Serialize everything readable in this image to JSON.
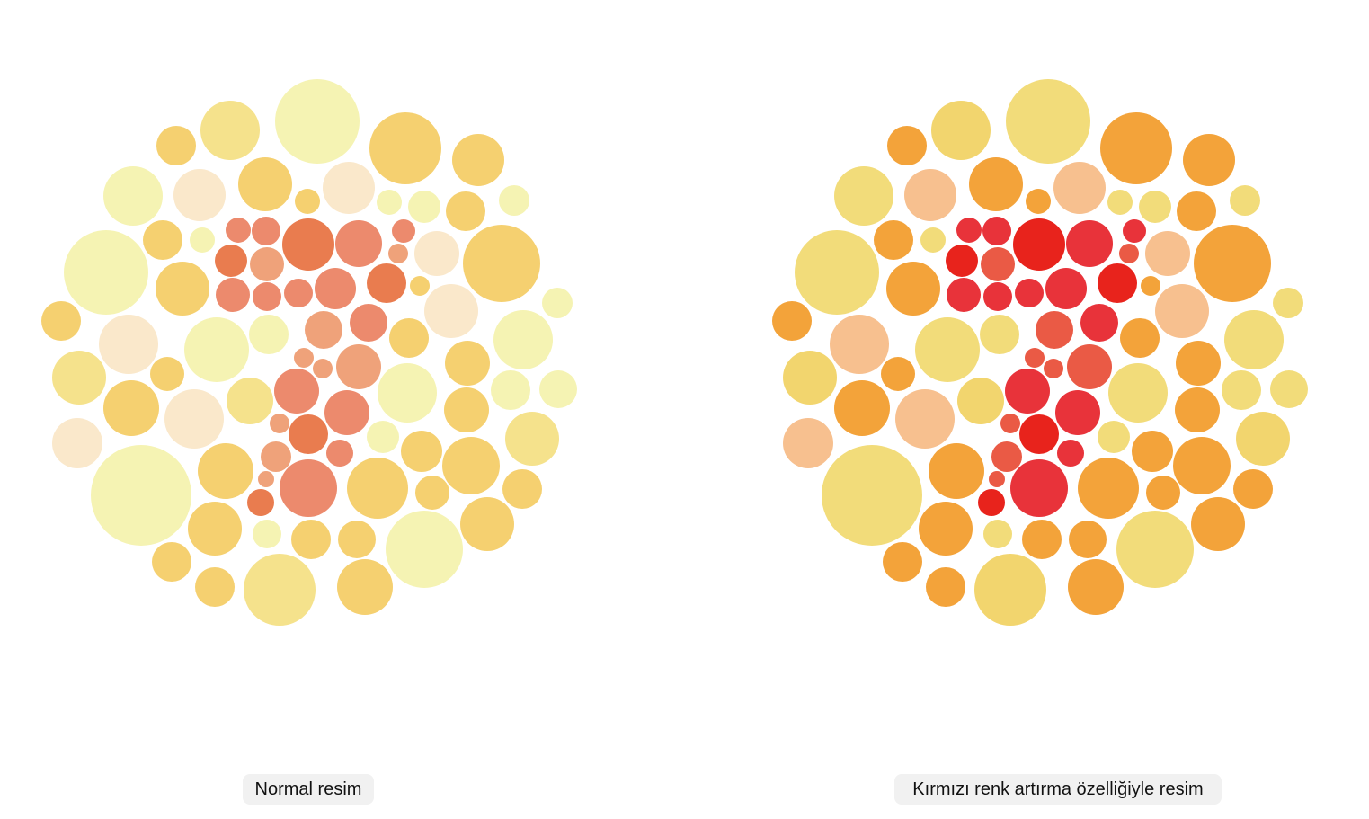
{
  "captions": {
    "normal": "Normal resim",
    "enhanced": "Kırmızı renk artırma özelliğiyle resim"
  },
  "palettes": {
    "normal": {
      "pale_yellow": "#f5f3b3",
      "yellow": "#f5e28c",
      "gold": "#f5d070",
      "cream": "#fae8cb",
      "peach": "#efa27a",
      "salmon": "#ec8a6d",
      "orange_red": "#e97c4f"
    },
    "enhanced": {
      "pale_yellow": "#f2dc7a",
      "yellow": "#f2d56e",
      "gold": "#f3a33a",
      "cream": "#f7c08f",
      "peach": "#ea5a45",
      "salmon": "#e8333a",
      "orange_red": "#e8231c"
    }
  }
}
